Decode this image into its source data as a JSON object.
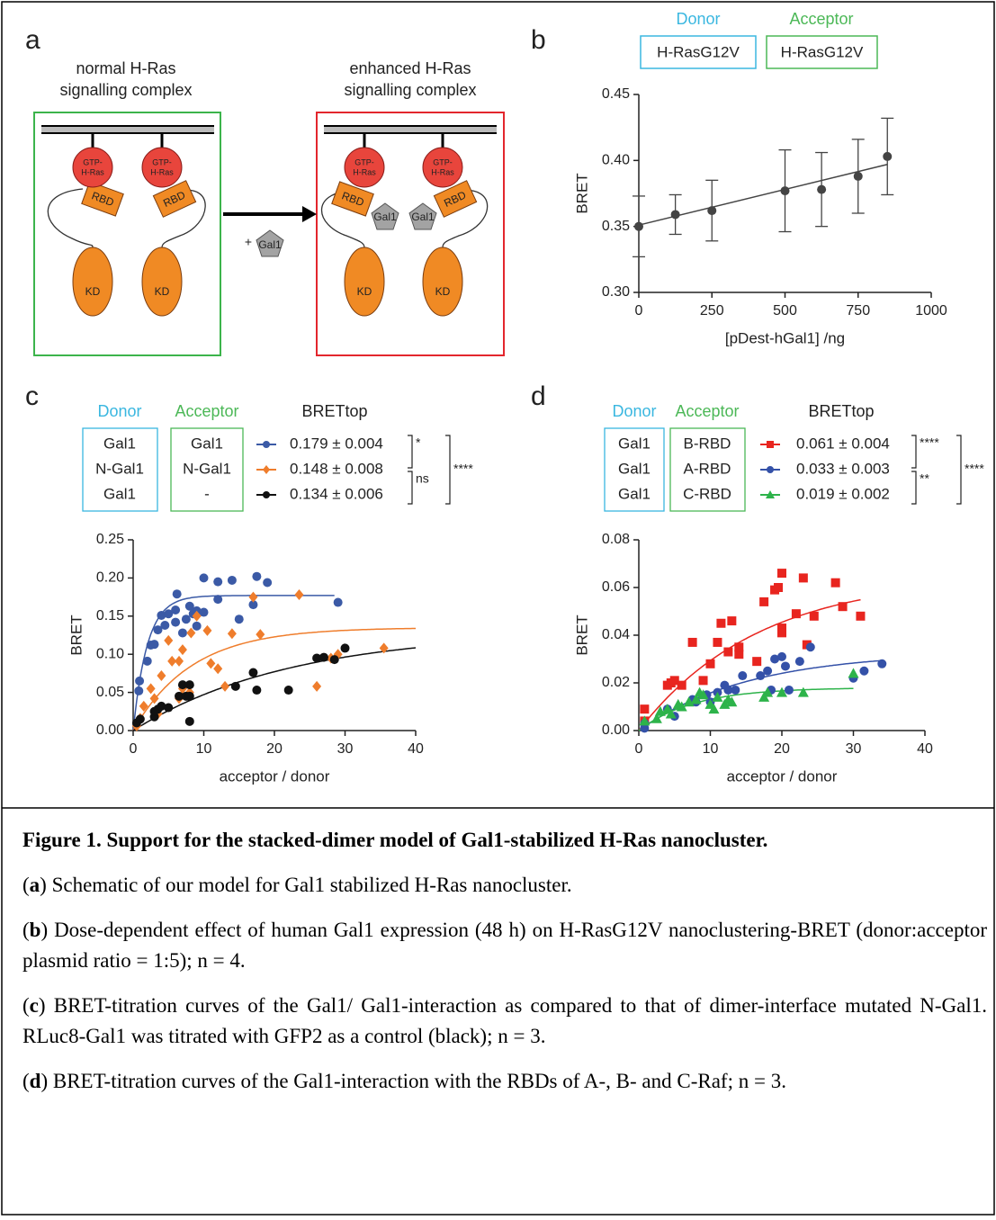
{
  "panel_labels": [
    "a",
    "b",
    "c",
    "d"
  ],
  "schematic": {
    "left_title": "normal H-Ras signalling complex",
    "right_title": "enhanced H-Ras signalling complex",
    "gtp_ras": [
      "GTP-",
      "H-Ras"
    ],
    "rbd": "RBD",
    "kd": "KD",
    "gal1": "Gal1",
    "plus": "+"
  },
  "chart_data": [
    {
      "type": "errorbar",
      "header": {
        "donor": "Donor",
        "acceptor": "Acceptor"
      },
      "donor_color": "#3ab7e0",
      "acceptor_color": "#4cb857",
      "donor": "H-RasG12V",
      "acceptor": "H-RasG12V",
      "x": [
        0,
        125,
        250,
        500,
        625,
        750,
        850
      ],
      "series": [
        {
          "color": "#444444",
          "values": [
            0.35,
            0.359,
            0.362,
            0.377,
            0.378,
            0.388,
            0.403
          ],
          "errors": [
            0.023,
            0.015,
            0.023,
            0.031,
            0.028,
            0.028,
            0.029
          ]
        }
      ],
      "fit": {
        "x": [
          0,
          850
        ],
        "values": [
          0.351,
          0.397
        ]
      },
      "xlim": [
        0,
        1000
      ],
      "ylim": [
        0.3,
        0.45
      ],
      "xticks": [
        0,
        250,
        500,
        750,
        1000
      ],
      "yticks": [
        {
          "value": 0.3,
          "label": "0.30"
        },
        0.35,
        {
          "value": 0.4,
          "label": "0.40"
        },
        0.45
      ],
      "xlabel": "[pDest-hGal1] /ng",
      "ylabel": "BRET"
    },
    {
      "type": "scatter",
      "header": {
        "donor": "Donor",
        "acceptor": "Acceptor",
        "bret_top": "BRETtop"
      },
      "donor_color": "#3ab7e0",
      "acceptor_color": "#4cb857",
      "series": [
        {
          "donor": "Gal1",
          "acceptor": "Gal1",
          "bret_top": "0.179 ± 0.004",
          "color": "#3b5aa6",
          "marker": "circle",
          "x": [
            0.8,
            0.9,
            2,
            2.5,
            3,
            3.5,
            4,
            4.5,
            5,
            6,
            6,
            6.2,
            7,
            7.5,
            8,
            9,
            8.5,
            9,
            10,
            10,
            12,
            12,
            14,
            15,
            17,
            17.5,
            19,
            29
          ],
          "values": [
            0.052,
            0.065,
            0.091,
            0.112,
            0.113,
            0.132,
            0.151,
            0.138,
            0.153,
            0.142,
            0.158,
            0.179,
            0.128,
            0.146,
            0.163,
            0.157,
            0.153,
            0.137,
            0.2,
            0.155,
            0.195,
            0.172,
            0.197,
            0.146,
            0.165,
            0.202,
            0.194,
            0.168
          ],
          "fit": {
            "top": 0.177,
            "rate": 0.5,
            "xmax": 28.5
          }
        },
        {
          "donor": "N-Gal1",
          "acceptor": "N-Gal1",
          "bret_top": "0.148 ± 0.008",
          "color": "#ef7d2c",
          "marker": "diamond",
          "x": [
            0.5,
            1,
            1.5,
            2.5,
            3,
            3.5,
            4,
            5,
            5.5,
            6.5,
            7,
            6.5,
            7,
            8,
            8.2,
            9,
            10.5,
            11,
            12,
            13,
            14,
            17,
            18,
            23.5,
            26,
            28,
            29,
            35.5
          ],
          "values": [
            0.006,
            0.016,
            0.032,
            0.055,
            0.042,
            0.022,
            0.072,
            0.118,
            0.091,
            0.091,
            0.106,
            0.042,
            0.055,
            0.05,
            0.128,
            0.15,
            0.131,
            0.088,
            0.081,
            0.058,
            0.127,
            0.175,
            0.126,
            0.178,
            0.058,
            0.095,
            0.1,
            0.108
          ],
          "fit": {
            "top": 0.135,
            "rate": 0.12,
            "xmax": 40
          }
        },
        {
          "donor": "Gal1",
          "acceptor": "-",
          "bret_top": "0.134 ± 0.006",
          "color": "#111111",
          "marker": "circle",
          "x": [
            0.5,
            1,
            3,
            3.5,
            4,
            3,
            5,
            6.5,
            7,
            7.5,
            8,
            8,
            8,
            14.5,
            17,
            17.5,
            22,
            26,
            27,
            28.5,
            30
          ],
          "values": [
            0.01,
            0.015,
            0.018,
            0.028,
            0.032,
            0.025,
            0.03,
            0.045,
            0.06,
            0.045,
            0.06,
            0.045,
            0.012,
            0.058,
            0.076,
            0.053,
            0.053,
            0.095,
            0.096,
            0.093,
            0.108
          ],
          "fit": {
            "top": 0.13,
            "rate": 0.045,
            "xmax": 40
          }
        }
      ],
      "brackets": [
        {
          "rows": [
            0,
            1
          ],
          "label": "*"
        },
        {
          "rows": [
            1,
            2
          ],
          "label": "ns"
        },
        {
          "rows": [
            0,
            2
          ],
          "label": "****"
        }
      ],
      "xlim": [
        0,
        40
      ],
      "ylim": [
        0,
        0.25
      ],
      "xticks": [
        0,
        10,
        20,
        30,
        40
      ],
      "yticks": [
        {
          "value": 0,
          "label": "0.00"
        },
        0.05,
        {
          "value": 0.1,
          "label": "0.10"
        },
        0.15,
        {
          "value": 0.2,
          "label": "0.20"
        },
        0.25
      ],
      "xlabel": "acceptor / donor",
      "ylabel": "BRET"
    },
    {
      "type": "scatter",
      "header": {
        "donor": "Donor",
        "acceptor": "Acceptor",
        "bret_top": "BRETtop"
      },
      "donor_color": "#3ab7e0",
      "acceptor_color": "#4cb857",
      "series": [
        {
          "donor": "Gal1",
          "acceptor": "B-RBD",
          "bret_top": "0.061 ± 0.004",
          "color": "#e8251f",
          "marker": "square",
          "x": [
            0.8,
            0.8,
            4,
            4.5,
            5,
            6,
            7.5,
            9,
            10,
            11,
            11.5,
            12.5,
            13,
            14,
            14,
            16.5,
            17.5,
            19,
            19.5,
            20,
            20,
            20,
            22,
            23,
            23.5,
            24.5,
            27.5,
            28.5,
            31
          ],
          "values": [
            0.009,
            0.004,
            0.019,
            0.02,
            0.021,
            0.019,
            0.037,
            0.021,
            0.028,
            0.037,
            0.045,
            0.033,
            0.046,
            0.032,
            0.035,
            0.029,
            0.054,
            0.059,
            0.06,
            0.043,
            0.066,
            0.041,
            0.049,
            0.064,
            0.036,
            0.048,
            0.062,
            0.052,
            0.048
          ],
          "fit": {
            "top": 0.065,
            "rate": 0.06,
            "xmax": 31
          }
        },
        {
          "donor": "Gal1",
          "acceptor": "A-RBD",
          "bret_top": "0.033 ± 0.003",
          "color": "#3451a8",
          "marker": "circle",
          "x": [
            0.8,
            0.8,
            4,
            5,
            7.5,
            8,
            9.5,
            10,
            11,
            12,
            12.5,
            13.5,
            14.5,
            17,
            18,
            18.5,
            19,
            20,
            20.5,
            21,
            22.5,
            24,
            30,
            31.5,
            34
          ],
          "values": [
            0.003,
            0.001,
            0.009,
            0.006,
            0.013,
            0.012,
            0.015,
            0.012,
            0.016,
            0.019,
            0.017,
            0.017,
            0.023,
            0.023,
            0.025,
            0.017,
            0.03,
            0.031,
            0.027,
            0.017,
            0.029,
            0.035,
            0.022,
            0.025,
            0.028
          ],
          "fit": {
            "top": 0.033,
            "rate": 0.065,
            "xmax": 34
          }
        },
        {
          "donor": "Gal1",
          "acceptor": "C-RBD",
          "bret_top": "0.019 ± 0.002",
          "color": "#2db34a",
          "marker": "triangle",
          "x": [
            0.8,
            2.5,
            3,
            4,
            4.5,
            5.5,
            6,
            7,
            8,
            8.5,
            9,
            10,
            10.5,
            11,
            12,
            12.5,
            13,
            17.5,
            18,
            20,
            23,
            30
          ],
          "values": [
            0.004,
            0.005,
            0.008,
            0.009,
            0.007,
            0.011,
            0.01,
            0.012,
            0.013,
            0.016,
            0.015,
            0.011,
            0.009,
            0.014,
            0.011,
            0.013,
            0.012,
            0.014,
            0.016,
            0.016,
            0.016,
            0.024
          ],
          "fit": {
            "top": 0.018,
            "rate": 0.13,
            "xmax": 30
          }
        }
      ],
      "brackets": [
        {
          "rows": [
            0,
            1
          ],
          "label": "****"
        },
        {
          "rows": [
            1,
            2
          ],
          "label": "**"
        },
        {
          "rows": [
            0,
            2
          ],
          "label": "****"
        }
      ],
      "xlim": [
        0,
        40
      ],
      "ylim": [
        0,
        0.08
      ],
      "xticks": [
        0,
        10,
        20,
        30,
        40
      ],
      "yticks": [
        {
          "value": 0,
          "label": "0.00"
        },
        0.02,
        0.04,
        0.06,
        0.08
      ],
      "xlabel": "acceptor / donor",
      "ylabel": "BRET"
    }
  ],
  "caption": {
    "title": "Figure 1. Support for the stacked-dimer model of Gal1-stabilized H-Ras nanocluster.",
    "items": [
      {
        "parts": [
          "(",
          "a",
          ") Schematic of our model for Gal1 stabilized H-Ras nanocluster."
        ]
      },
      {
        "parts": [
          "(",
          "b",
          ") Dose-dependent effect of human Gal1 expression (48 h) on H-RasG12V nanoclustering-BRET (donor:acceptor plasmid ratio = 1:5); n = 4."
        ]
      },
      {
        "parts": [
          "(",
          "c",
          ") BRET-titration curves of the Gal1/ Gal1-interaction as compared to that of dimer-interface mutated N-Gal1. RLuc8-Gal1 was titrated with GFP2 as a control (black); n = 3."
        ]
      },
      {
        "parts": [
          "(",
          "d",
          ") BRET-titration curves of the Gal1-interaction with the RBDs of A-, B- and C-Raf; n = 3."
        ]
      }
    ]
  }
}
